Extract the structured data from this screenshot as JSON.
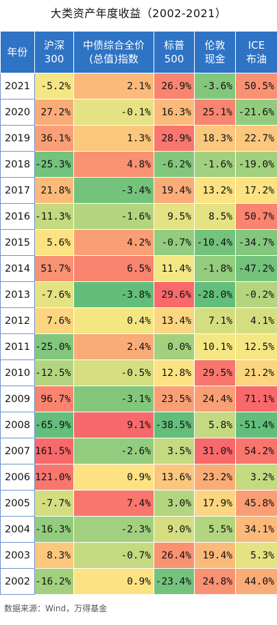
{
  "chart_data": {
    "type": "table",
    "title": "大类资产年度收益（2002-2021）",
    "source": "数据来源：Wind，万得基金",
    "columns": [
      [
        "年份"
      ],
      [
        "沪深",
        "300"
      ],
      [
        "中债综合全价",
        "(总值)指数"
      ],
      [
        "标普",
        "500"
      ],
      [
        "伦敦",
        "现金"
      ],
      [
        "ICE",
        "布油"
      ]
    ],
    "rows": [
      {
        "year": "2021",
        "values": [
          -5.2,
          2.1,
          26.9,
          -3.6,
          50.5
        ]
      },
      {
        "year": "2020",
        "values": [
          27.2,
          -0.1,
          16.3,
          25.1,
          -21.6
        ]
      },
      {
        "year": "2019",
        "values": [
          36.1,
          1.3,
          28.9,
          18.3,
          22.7
        ]
      },
      {
        "year": "2018",
        "values": [
          -25.3,
          4.8,
          -6.2,
          -1.6,
          -19.0
        ]
      },
      {
        "year": "2017",
        "values": [
          21.8,
          -3.4,
          19.4,
          13.2,
          17.2
        ]
      },
      {
        "year": "2016",
        "values": [
          -11.3,
          -1.6,
          9.5,
          8.5,
          50.7
        ]
      },
      {
        "year": "2015",
        "values": [
          5.6,
          4.2,
          -0.7,
          -10.4,
          -34.7
        ]
      },
      {
        "year": "2014",
        "values": [
          51.7,
          6.5,
          11.4,
          -1.8,
          -47.2
        ]
      },
      {
        "year": "2013",
        "values": [
          -7.6,
          -3.8,
          29.6,
          -28.0,
          -0.2
        ]
      },
      {
        "year": "2012",
        "values": [
          7.6,
          0.4,
          13.4,
          7.1,
          4.1
        ]
      },
      {
        "year": "2011",
        "values": [
          -25.0,
          2.4,
          0.0,
          10.1,
          12.5
        ]
      },
      {
        "year": "2010",
        "values": [
          -12.5,
          -0.5,
          12.8,
          29.5,
          21.2
        ]
      },
      {
        "year": "2009",
        "values": [
          96.7,
          -3.1,
          23.5,
          24.4,
          71.1
        ]
      },
      {
        "year": "2008",
        "values": [
          -65.9,
          9.1,
          -38.5,
          5.8,
          -51.4
        ]
      },
      {
        "year": "2007",
        "values": [
          161.5,
          -2.6,
          3.5,
          31.0,
          54.2
        ]
      },
      {
        "year": "2006",
        "values": [
          121.0,
          0.9,
          13.6,
          23.2,
          3.2
        ]
      },
      {
        "year": "2005",
        "values": [
          -7.7,
          7.4,
          3.0,
          17.9,
          45.8
        ]
      },
      {
        "year": "2004",
        "values": [
          -16.3,
          -2.3,
          9.0,
          5.5,
          34.1
        ]
      },
      {
        "year": "2003",
        "values": [
          8.3,
          -0.7,
          26.4,
          19.4,
          5.3
        ]
      },
      {
        "year": "2002",
        "values": [
          -16.2,
          0.9,
          -23.4,
          24.8,
          44.0
        ]
      }
    ],
    "colors": {
      "red": "#f8696b",
      "orange": "#fbb071",
      "yellow": "#fce983",
      "light_green": "#b6d97e",
      "green": "#63be7b",
      "header": "#2e73c4"
    }
  }
}
